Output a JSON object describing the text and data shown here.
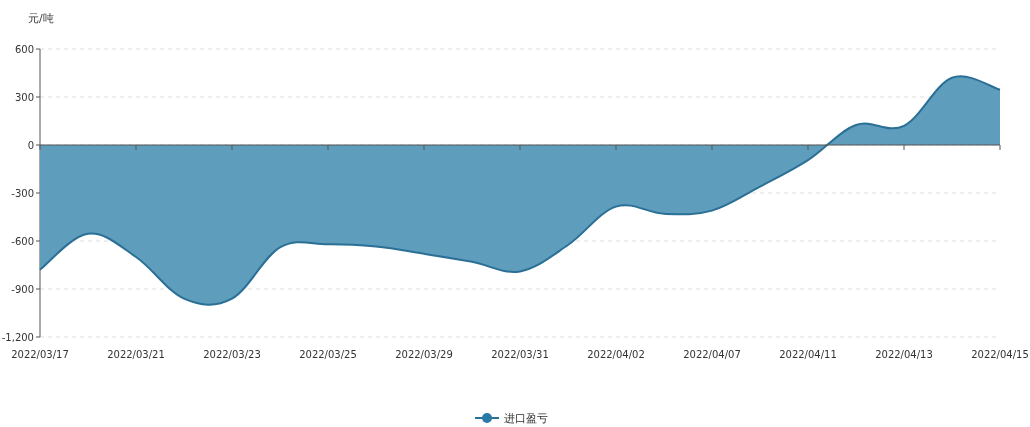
{
  "chart_data": {
    "type": "area",
    "ylabel": "元/吨",
    "categories": [
      "2022/03/17",
      null,
      "2022/03/21",
      null,
      "2022/03/23",
      null,
      "2022/03/25",
      null,
      "2022/03/29",
      null,
      "2022/03/31",
      null,
      "2022/04/02",
      null,
      "2022/04/07",
      null,
      "2022/04/11",
      null,
      "2022/04/13",
      null,
      "2022/04/15"
    ],
    "series": [
      {
        "name": "进口盈亏",
        "color": "#5f9dbd",
        "values": [
          -780,
          -555,
          -700,
          -960,
          -960,
          -640,
          -620,
          -635,
          -680,
          -730,
          -790,
          -625,
          -385,
          -430,
          -410,
          -260,
          -95,
          125,
          120,
          420,
          345
        ]
      }
    ],
    "ylim": [
      -1200,
      600
    ],
    "yticks": [
      600,
      300,
      0,
      -300,
      -600,
      -900,
      {
        "value": -1200,
        "label": "-1,200"
      }
    ],
    "grid": "y",
    "legend": "bottom"
  }
}
